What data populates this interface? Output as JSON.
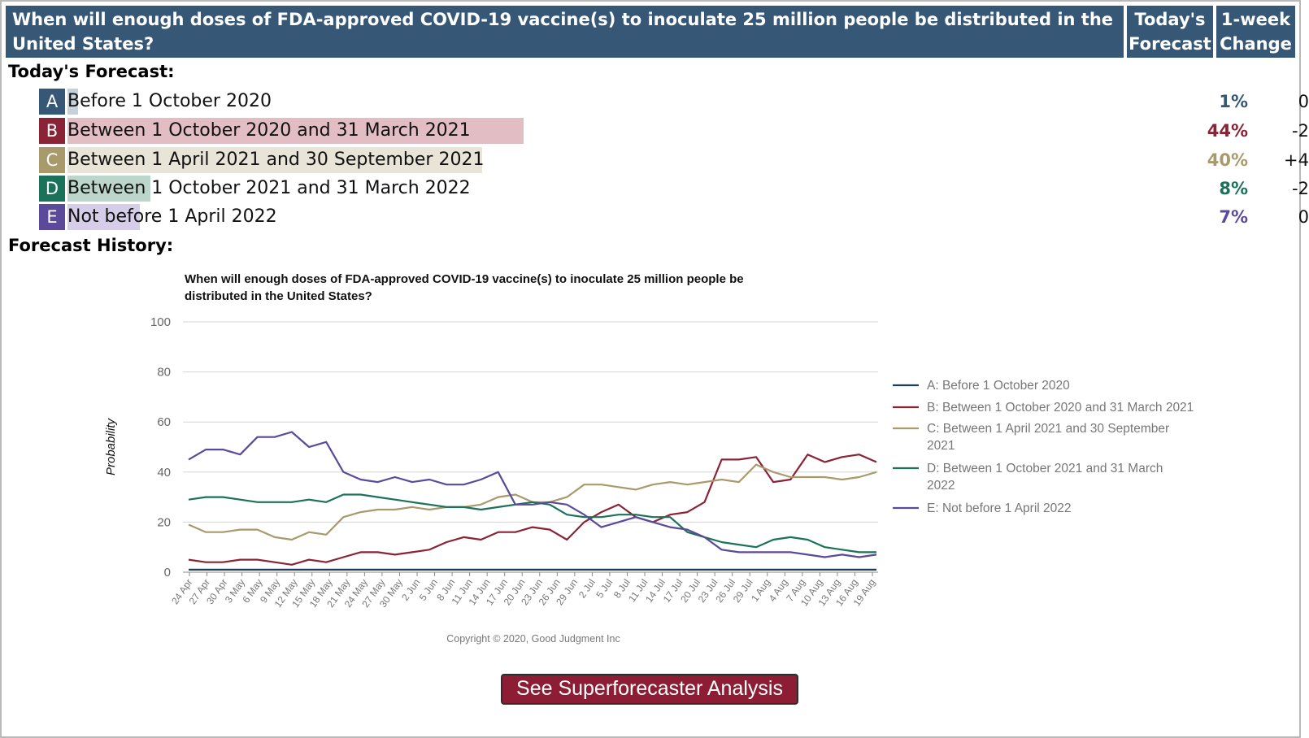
{
  "header": {
    "question": "When will enough doses of FDA-approved COVID-19 vaccine(s) to inoculate 25 million people be distributed in the United States?",
    "todays_forecast_label": "Today's Forecast",
    "week_change_label": "1-week Change"
  },
  "today_label": "Today's Forecast:",
  "history_label": "Forecast History:",
  "options": [
    {
      "letter": "A",
      "label": "Before 1 October 2020",
      "pct": "1%",
      "change": "0",
      "value": 1,
      "color": "#365876",
      "bar_color": "#c6d1db"
    },
    {
      "letter": "B",
      "label": "Between 1 October 2020 and 31 March 2021",
      "pct": "44%",
      "change": "-2",
      "value": 44,
      "color": "#8a2335",
      "bar_color": "#e2bdc4"
    },
    {
      "letter": "C",
      "label": "Between 1 April 2021 and 30 September 2021",
      "pct": "40%",
      "change": "+4",
      "value": 40,
      "color": "#a99a6c",
      "bar_color": "#e8e4d8"
    },
    {
      "letter": "D",
      "label": "Between 1 October 2021 and 31 March 2022",
      "pct": "8%",
      "change": "-2",
      "value": 8,
      "color": "#1a7259",
      "bar_color": "#bcd6cc"
    },
    {
      "letter": "E",
      "label": "Not before 1 April 2022",
      "pct": "7%",
      "change": "0",
      "value": 7,
      "color": "#5b4a9a",
      "bar_color": "#d6cde8"
    }
  ],
  "chart_data": {
    "type": "line",
    "title": "When will enough doses of FDA-approved COVID-19 vaccine(s) to inoculate 25 million people be distributed in the United States?",
    "ylabel": "Probability",
    "xlabel": "",
    "ylim": [
      0,
      100
    ],
    "yticks": [
      0,
      20,
      40,
      60,
      80,
      100
    ],
    "grid": true,
    "legend_position": "right",
    "x_tick_labels": [
      "24 Apr",
      "27 Apr",
      "30 Apr",
      "3 May",
      "6 May",
      "9 May",
      "12 May",
      "15 May",
      "18 May",
      "21 May",
      "24 May",
      "27 May",
      "30 May",
      "2 Jun",
      "5 Jun",
      "8 Jun",
      "11 Jun",
      "14 Jun",
      "17 Jun",
      "20 Jun",
      "23 Jun",
      "26 Jun",
      "29 Jun",
      "2 Jul",
      "5 Jul",
      "8 Jul",
      "11 Jul",
      "14 Jul",
      "17 Jul",
      "20 Jul",
      "23 Jul",
      "26 Jul",
      "29 Jul",
      "1 Aug",
      "4 Aug",
      "7 Aug",
      "10 Aug",
      "13 Aug",
      "16 Aug",
      "19 Aug"
    ],
    "series": [
      {
        "name": "A: Before 1 October 2020",
        "color": "#1f3e5e",
        "values": [
          1,
          1,
          1,
          1,
          1,
          1,
          1,
          1,
          1,
          1,
          1,
          1,
          1,
          1,
          1,
          1,
          1,
          1,
          1,
          1,
          1,
          1,
          1,
          1,
          1,
          1,
          1,
          1,
          1,
          1,
          1,
          1,
          1,
          1,
          1,
          1,
          1,
          1,
          1,
          1,
          1
        ]
      },
      {
        "name": "B: Between 1 October 2020 and 31 March 2021",
        "color": "#8a2335",
        "values": [
          5,
          4,
          4,
          5,
          5,
          4,
          3,
          5,
          4,
          6,
          8,
          8,
          7,
          8,
          9,
          12,
          14,
          13,
          16,
          16,
          18,
          17,
          13,
          20,
          24,
          27,
          22,
          20,
          23,
          24,
          28,
          45,
          45,
          46,
          36,
          37,
          47,
          44,
          46,
          47,
          44
        ]
      },
      {
        "name": "C: Between 1 April 2021 and 30 September 2021",
        "color": "#a99a6c",
        "values": [
          19,
          16,
          16,
          17,
          17,
          14,
          13,
          16,
          15,
          22,
          24,
          25,
          25,
          26,
          25,
          26,
          26,
          27,
          30,
          31,
          28,
          28,
          30,
          35,
          35,
          34,
          33,
          35,
          36,
          35,
          36,
          37,
          36,
          43,
          40,
          38,
          38,
          38,
          37,
          38,
          40
        ]
      },
      {
        "name": "D: Between 1 October 2021 and 31 March 2022",
        "color": "#1a7259",
        "values": [
          29,
          30,
          30,
          29,
          28,
          28,
          28,
          29,
          28,
          31,
          31,
          30,
          29,
          28,
          27,
          26,
          26,
          25,
          26,
          27,
          28,
          27,
          23,
          22,
          22,
          23,
          23,
          22,
          22,
          16,
          14,
          12,
          11,
          10,
          13,
          14,
          13,
          10,
          9,
          8,
          8
        ]
      },
      {
        "name": "E: Not before 1 April 2022",
        "color": "#5b4a9a",
        "values": [
          45,
          49,
          49,
          47,
          54,
          54,
          56,
          50,
          52,
          40,
          37,
          36,
          38,
          36,
          37,
          35,
          35,
          37,
          40,
          27,
          27,
          28,
          27,
          23,
          18,
          20,
          22,
          20,
          18,
          17,
          14,
          9,
          8,
          8,
          8,
          8,
          7,
          6,
          7,
          6,
          7
        ]
      }
    ],
    "copyright": "Copyright © 2020, Good Judgment Inc"
  },
  "button_label": "See Superforecaster Analysis"
}
